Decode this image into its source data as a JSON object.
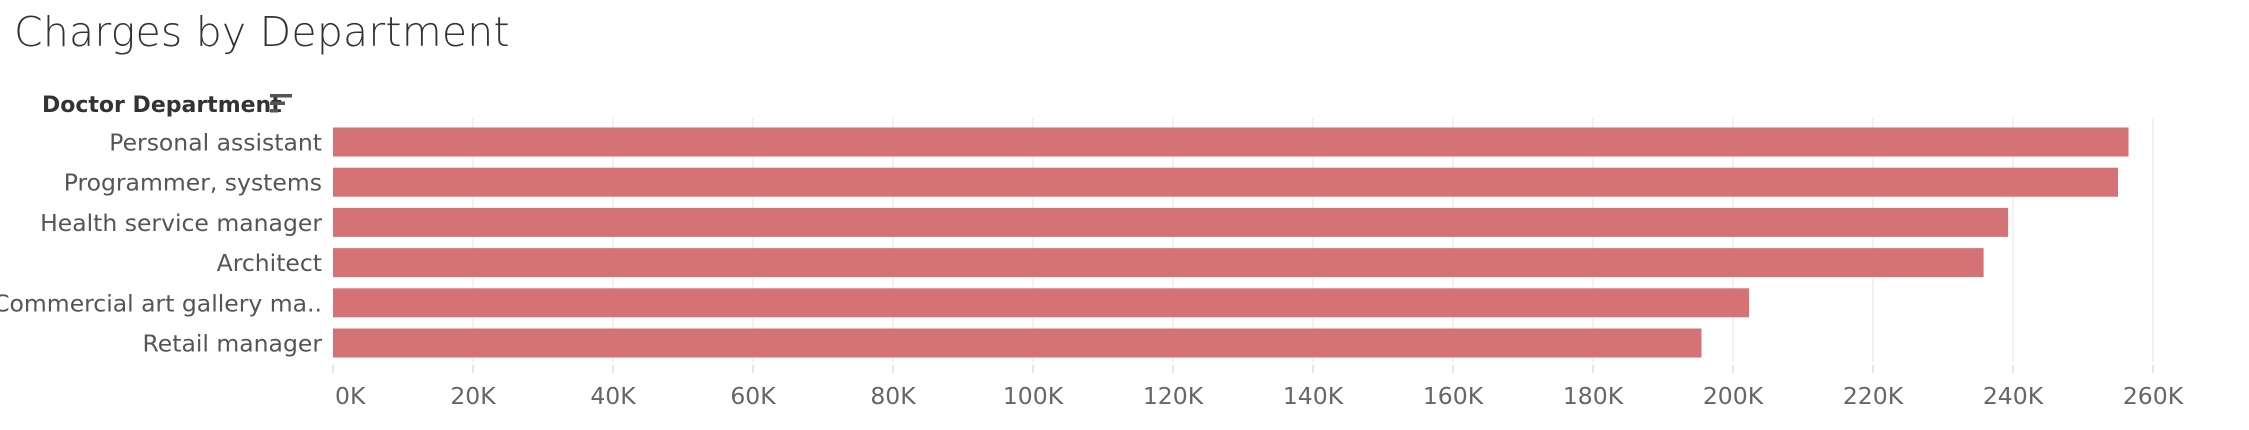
{
  "title": "Charges by Department",
  "chart_data": {
    "type": "bar",
    "orientation": "horizontal",
    "title": "Charges by Department",
    "category_header": "Doctor Department",
    "sort_icon": "sort-descending-icon",
    "bar_color": "#D47275",
    "categories": [
      "Personal assistant",
      "Programmer, systems",
      "Health service manager",
      "Architect",
      "Commercial art gallery ma..",
      "Retail manager"
    ],
    "values": [
      256500,
      255000,
      239300,
      235800,
      202300,
      195500
    ],
    "xlim": [
      0,
      270000
    ],
    "xticks": [
      0,
      20000,
      40000,
      60000,
      80000,
      100000,
      120000,
      140000,
      160000,
      180000,
      200000,
      220000,
      240000,
      260000
    ],
    "xtick_labels": [
      "0K",
      "20K",
      "40K",
      "60K",
      "80K",
      "100K",
      "120K",
      "140K",
      "160K",
      "180K",
      "200K",
      "220K",
      "240K",
      "260K"
    ],
    "grid": "vertical",
    "legend": "none"
  }
}
